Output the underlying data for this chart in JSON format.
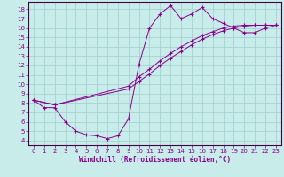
{
  "xlabel": "Windchill (Refroidissement éolien,°C)",
  "bg_color": "#c8ecea",
  "grid_color": "#9ecece",
  "line_color": "#880088",
  "spine_color": "#440044",
  "ylim": [
    3.5,
    18.8
  ],
  "xlim": [
    -0.5,
    23.5
  ],
  "yticks": [
    4,
    5,
    6,
    7,
    8,
    9,
    10,
    11,
    12,
    13,
    14,
    15,
    16,
    17,
    18
  ],
  "xticks": [
    0,
    1,
    2,
    3,
    4,
    5,
    6,
    7,
    8,
    9,
    10,
    11,
    12,
    13,
    14,
    15,
    16,
    17,
    18,
    19,
    20,
    21,
    22,
    23
  ],
  "series1_x": [
    0,
    1,
    2,
    3,
    4,
    5,
    6,
    7,
    8,
    9,
    10,
    11,
    12,
    13,
    14,
    15,
    16,
    17,
    18,
    19,
    20,
    21,
    22,
    23
  ],
  "series1_y": [
    8.3,
    7.5,
    7.5,
    6.0,
    5.0,
    4.6,
    4.5,
    4.2,
    4.5,
    6.3,
    12.1,
    16.0,
    17.5,
    18.4,
    17.0,
    17.5,
    18.2,
    17.0,
    16.5,
    16.0,
    15.5,
    15.5,
    16.0,
    16.3
  ],
  "series2_x": [
    0,
    2,
    9,
    10,
    11,
    12,
    13,
    14,
    15,
    16,
    17,
    18,
    19,
    20,
    21,
    22,
    23
  ],
  "series2_y": [
    8.3,
    7.8,
    9.5,
    10.3,
    11.1,
    12.0,
    12.8,
    13.5,
    14.2,
    14.8,
    15.3,
    15.7,
    16.0,
    16.2,
    16.3,
    16.3,
    16.3
  ],
  "series3_x": [
    0,
    2,
    9,
    10,
    11,
    12,
    13,
    14,
    15,
    16,
    17,
    18,
    19,
    20,
    21,
    22,
    23
  ],
  "series3_y": [
    8.3,
    7.8,
    9.8,
    10.8,
    11.6,
    12.5,
    13.3,
    14.0,
    14.6,
    15.2,
    15.6,
    16.0,
    16.2,
    16.3,
    16.3,
    16.3,
    16.3
  ]
}
